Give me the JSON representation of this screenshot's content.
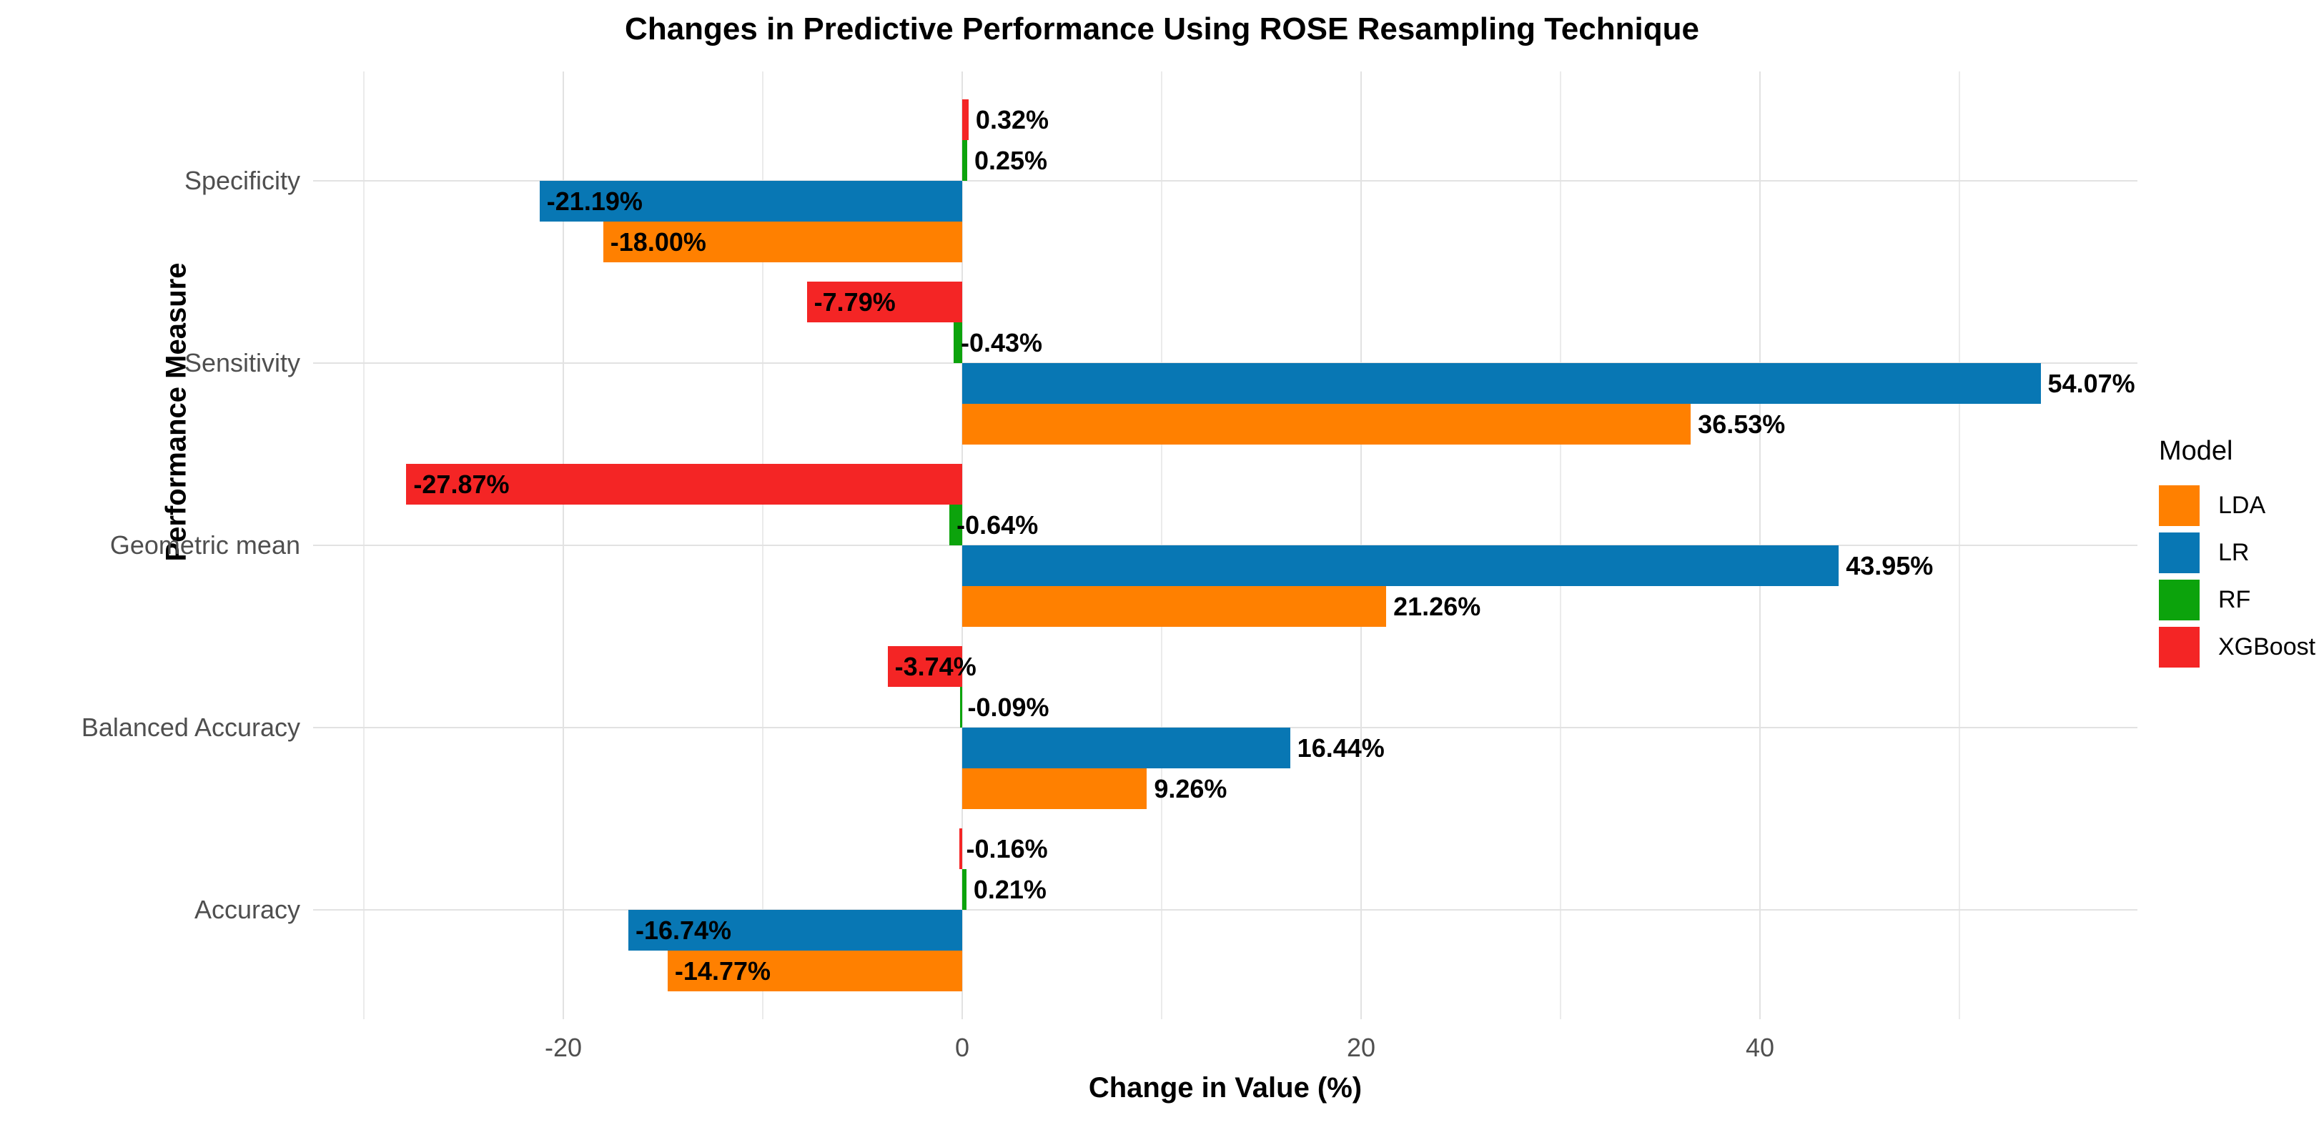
{
  "figure": {
    "title": "Changes in Predictive Performance Using ROSE Resampling Technique",
    "x_axis_title": "Change in Value (%)",
    "y_axis_title": "Performance Measure",
    "legend_title": "Model"
  },
  "style_colors": {
    "axis_text": "#4f4f4f",
    "grid_major": "#e2e2e2",
    "grid_minor": "#ebebeb",
    "title_text": "#000000",
    "panel_background": "#ffffff"
  },
  "chart_data": {
    "type": "bar",
    "orientation": "horizontal",
    "title": "Changes in Predictive Performance Using ROSE Resampling Technique",
    "xlabel": "Change in Value (%)",
    "ylabel": "Performance Measure",
    "categories": [
      "Specificity",
      "Sensitivity",
      "Geometric mean",
      "Balanced Accuracy",
      "Accuracy"
    ],
    "series": [
      {
        "name": "LDA",
        "color": "#FF8000",
        "values": [
          -18.0,
          36.53,
          21.26,
          9.26,
          -14.77
        ],
        "labels": [
          "-18.00%",
          "36.53%",
          "21.26%",
          "9.26%",
          "-14.77%"
        ]
      },
      {
        "name": "LR",
        "color": "#0877B4",
        "values": [
          -21.19,
          54.07,
          43.95,
          16.44,
          -16.74
        ],
        "labels": [
          "-21.19%",
          "54.07%",
          "43.95%",
          "16.44%",
          "-16.74%"
        ]
      },
      {
        "name": "RF",
        "color": "#0CA30C",
        "values": [
          0.25,
          -0.43,
          -0.64,
          -0.09,
          0.21
        ],
        "labels": [
          "0.25%",
          "-0.43%",
          "-0.64%",
          "-0.09%",
          "0.21%"
        ]
      },
      {
        "name": "XGBoost",
        "color": "#F42525",
        "values": [
          0.32,
          -7.79,
          -27.87,
          -3.74,
          -0.16
        ],
        "labels": [
          "0.32%",
          "-7.79%",
          "-27.87%",
          "-3.74%",
          "-0.16%"
        ]
      }
    ],
    "bar_order_top_to_bottom": [
      "XGBoost",
      "RF",
      "LR",
      "LDA"
    ],
    "x_ticks": [
      -20,
      0,
      20,
      40
    ],
    "x_minor_gridlines": [
      -30,
      -10,
      10,
      30,
      50
    ],
    "xlim": [
      -32.5,
      58.9
    ],
    "value_suffix": "%",
    "grid": true,
    "legend_title": "Model",
    "legend_position": "right",
    "legend_entries": [
      "LDA",
      "LR",
      "RF",
      "XGBoost"
    ]
  }
}
